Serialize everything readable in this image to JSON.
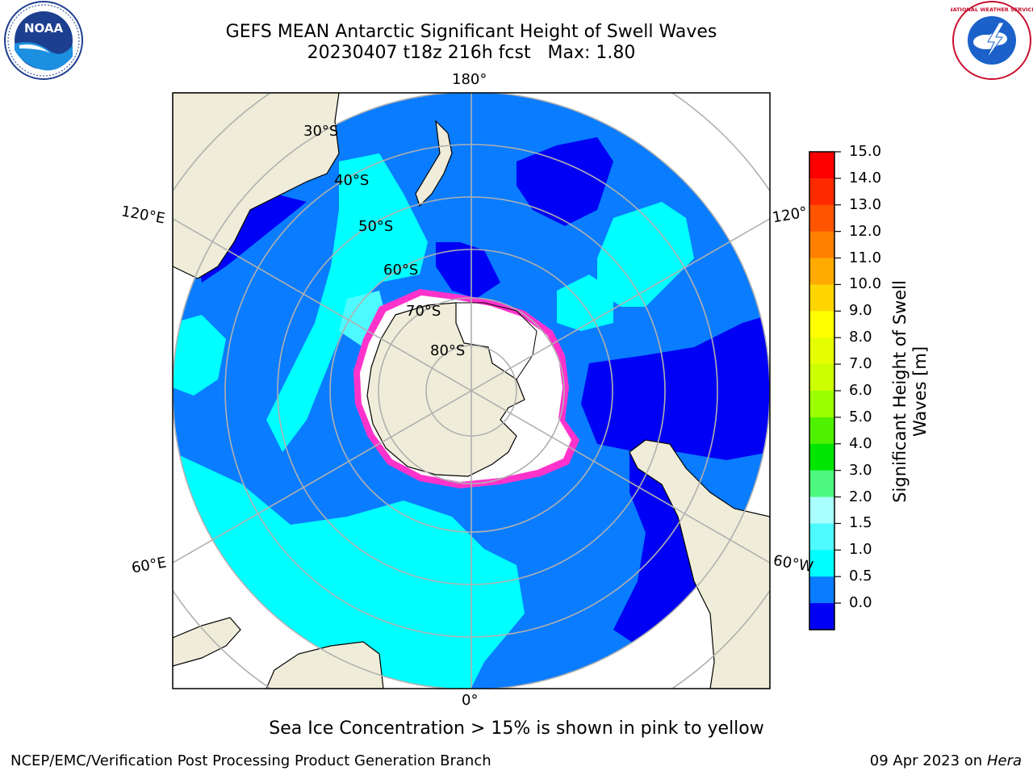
{
  "title": {
    "line1": "GEFS MEAN Antarctic Significant Height of Swell Waves",
    "line2": "20230407 t18z 216h fcst   Max: 1.80"
  },
  "map": {
    "projection": "south-polar-stereographic",
    "longitude_labels": {
      "top": "180°",
      "upper_left": "120°E",
      "upper_right": "120°",
      "lower_left": "60°E",
      "lower_right": "60°W",
      "bottom": "0°"
    },
    "latitude_labels": [
      "30°S",
      "40°S",
      "50°S",
      "60°S",
      "70°S",
      "80°S"
    ],
    "colors": {
      "land": "#efedd9",
      "ocean_dark": "#0000f5",
      "ocean_mid": "#0a7cff",
      "ocean_light": "#00ffff",
      "ocean_lighter": "#4dfaff",
      "ice_edge": "#ff33cc",
      "ice": "#ffffff",
      "grid": "#b0b0b0"
    }
  },
  "colorbar": {
    "label_line1": "Significant Height of Swell",
    "label_line2": "Waves [m]",
    "ticks": [
      "15.0",
      "14.0",
      "13.0",
      "12.0",
      "11.0",
      "10.0",
      "9.0",
      "8.0",
      "7.0",
      "6.0",
      "5.0",
      "4.0",
      "3.0",
      "2.0",
      "1.5",
      "1.0",
      "0.5",
      "0.0"
    ],
    "bin_colors": [
      "#ff0000",
      "#ff2a00",
      "#ff5500",
      "#ff7f00",
      "#ffaa00",
      "#ffd400",
      "#ffff00",
      "#e6ff00",
      "#ccff00",
      "#9cff00",
      "#4ff000",
      "#00e600",
      "#4dfa7f",
      "#aaffff",
      "#4dfaff",
      "#00ffff",
      "#0a7cff",
      "#0000f5"
    ]
  },
  "note": "Sea Ice Concentration > 15% is shown in pink to yellow",
  "footer": {
    "left": "NCEP/EMC/Verification Post Processing Product Generation Branch",
    "right_text": "09 Apr 2023 on",
    "right_italic": "Hera"
  },
  "logos": {
    "left": "NOAA",
    "right": "NATIONAL WEATHER SERVICE"
  }
}
